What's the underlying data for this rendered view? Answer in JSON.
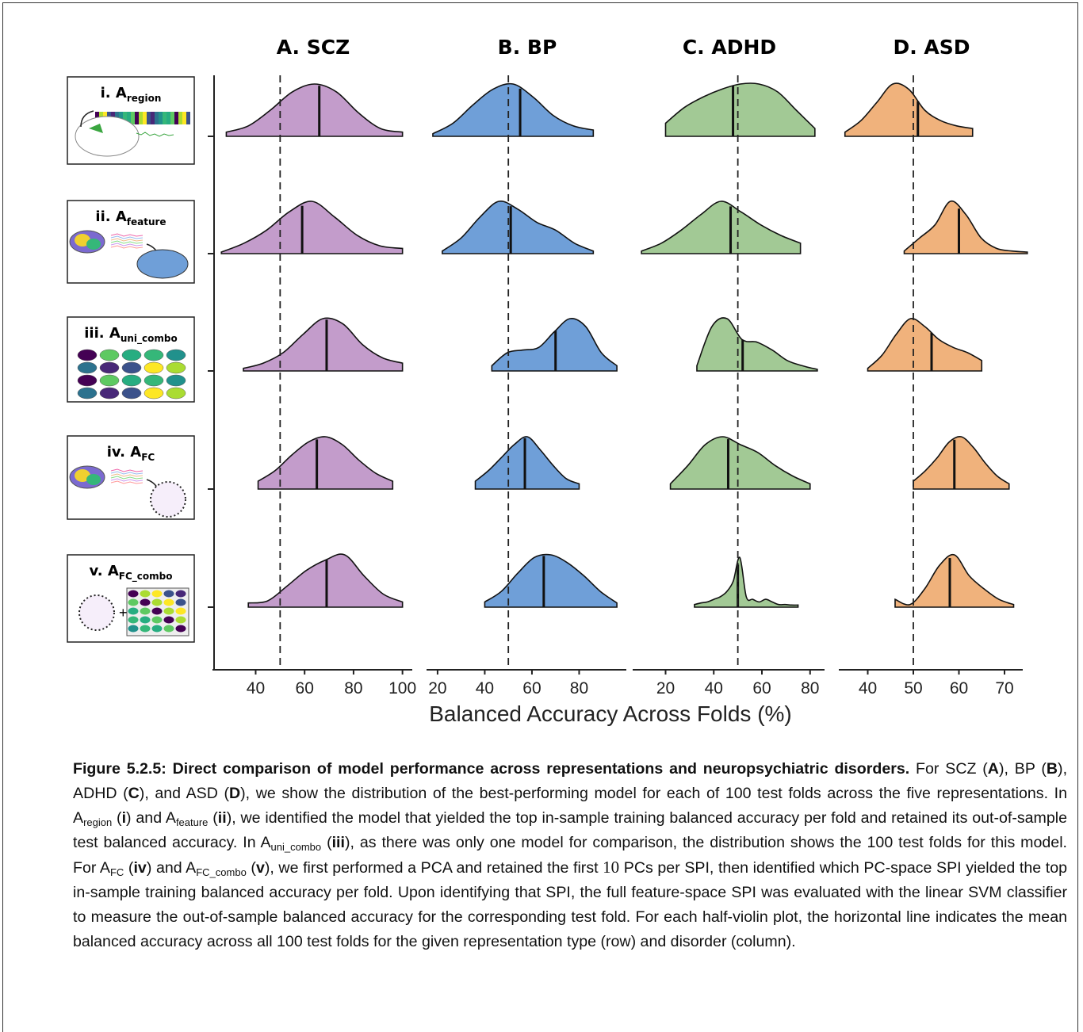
{
  "chart_data": [
    {
      "type": "violin",
      "title": "A. SCZ",
      "color": "#c39ccb",
      "xlim": [
        23,
        104
      ],
      "xticks": [
        40,
        60,
        80,
        100
      ],
      "ref": 50,
      "violins": [
        {
          "xrange": [
            28,
            100
          ],
          "mean": 66,
          "density": [
            0.08,
            0.2,
            0.5,
            0.85,
            1.0,
            0.85,
            0.45,
            0.15,
            0.08
          ]
        },
        {
          "xrange": [
            26,
            100
          ],
          "mean": 59,
          "density": [
            0.03,
            0.2,
            0.45,
            0.8,
            1.0,
            0.7,
            0.35,
            0.15,
            0.1
          ]
        },
        {
          "xrange": [
            35,
            100
          ],
          "mean": 69,
          "density": [
            0.05,
            0.15,
            0.35,
            0.7,
            1.0,
            0.9,
            0.5,
            0.25,
            0.15
          ]
        },
        {
          "xrange": [
            41,
            96
          ],
          "mean": 65,
          "density": [
            0.15,
            0.35,
            0.65,
            0.9,
            1.0,
            0.85,
            0.55,
            0.3,
            0.15
          ]
        },
        {
          "xrange": [
            37,
            100
          ],
          "mean": 69,
          "density": [
            0.08,
            0.12,
            0.4,
            0.7,
            0.9,
            1.0,
            0.6,
            0.25,
            0.1
          ]
        }
      ]
    },
    {
      "type": "violin",
      "title": "B. BP",
      "color": "#6f9fd8",
      "xlim": [
        16,
        100
      ],
      "xticks": [
        20,
        40,
        60,
        80
      ],
      "ref": 50,
      "violins": [
        {
          "xrange": [
            18,
            86
          ],
          "mean": 55,
          "density": [
            0.05,
            0.25,
            0.6,
            0.9,
            1.0,
            0.75,
            0.4,
            0.2,
            0.12
          ]
        },
        {
          "xrange": [
            22,
            86
          ],
          "mean": 51,
          "density": [
            0.05,
            0.3,
            0.7,
            1.0,
            0.85,
            0.6,
            0.45,
            0.2,
            0.05
          ]
        },
        {
          "xrange": [
            43,
            96
          ],
          "mean": 70,
          "density": [
            0.1,
            0.35,
            0.4,
            0.45,
            0.75,
            1.0,
            0.85,
            0.35,
            0.1
          ]
        },
        {
          "xrange": [
            36,
            80
          ],
          "mean": 57,
          "density": [
            0.15,
            0.35,
            0.6,
            0.85,
            1.0,
            0.75,
            0.45,
            0.2,
            0.1
          ]
        },
        {
          "xrange": [
            40,
            96
          ],
          "mean": 65,
          "density": [
            0.1,
            0.3,
            0.65,
            0.95,
            1.0,
            0.85,
            0.6,
            0.3,
            0.08
          ]
        }
      ]
    },
    {
      "type": "violin",
      "title": "C. ADHD",
      "color": "#a2c995",
      "xlim": [
        7,
        86
      ],
      "xticks": [
        20,
        40,
        60,
        80
      ],
      "ref": 50,
      "violins": [
        {
          "xrange": [
            20,
            82
          ],
          "mean": 48,
          "density": [
            0.25,
            0.55,
            0.75,
            0.9,
            1.0,
            1.0,
            0.85,
            0.5,
            0.15
          ]
        },
        {
          "xrange": [
            10,
            76
          ],
          "mean": 47,
          "density": [
            0.05,
            0.2,
            0.45,
            0.75,
            1.0,
            0.8,
            0.55,
            0.35,
            0.2
          ]
        },
        {
          "xrange": [
            33,
            83
          ],
          "mean": 52,
          "density": [
            0.1,
            0.85,
            1.0,
            0.6,
            0.55,
            0.4,
            0.2,
            0.1,
            0.03
          ]
        },
        {
          "xrange": [
            22,
            80
          ],
          "mean": 46,
          "density": [
            0.1,
            0.45,
            0.85,
            1.0,
            0.85,
            0.7,
            0.45,
            0.25,
            0.1
          ]
        },
        {
          "xrange": [
            32,
            75
          ],
          "mean": 50,
          "density": [
            0.05,
            0.08,
            0.1,
            0.15,
            0.2,
            0.3,
            0.5,
            0.95,
            0.2,
            0.15,
            0.1,
            0.15,
            0.1,
            0.05,
            0.05,
            0.04,
            0.04
          ]
        }
      ]
    },
    {
      "type": "violin",
      "title": "D. ASD",
      "color": "#f0b27c",
      "xlim": [
        34,
        74
      ],
      "xticks": [
        40,
        50,
        60,
        70
      ],
      "ref": 50,
      "violins": [
        {
          "xrange": [
            35,
            63
          ],
          "mean": 51,
          "density": [
            0.08,
            0.3,
            0.65,
            1.0,
            0.9,
            0.5,
            0.3,
            0.2,
            0.15
          ]
        },
        {
          "xrange": [
            48,
            75
          ],
          "mean": 60,
          "density": [
            0.05,
            0.3,
            0.55,
            1.0,
            0.75,
            0.3,
            0.1,
            0.05,
            0.03
          ]
        },
        {
          "xrange": [
            40,
            65
          ],
          "mean": 54,
          "density": [
            0.05,
            0.3,
            0.7,
            1.0,
            0.85,
            0.6,
            0.45,
            0.35,
            0.2
          ]
        },
        {
          "xrange": [
            50,
            71
          ],
          "mean": 59,
          "density": [
            0.15,
            0.35,
            0.6,
            0.9,
            1.0,
            0.8,
            0.5,
            0.25,
            0.1
          ]
        },
        {
          "xrange": [
            46,
            72
          ],
          "mean": 58,
          "density": [
            0.15,
            0.05,
            0.35,
            0.8,
            1.0,
            0.6,
            0.35,
            0.15,
            0.05
          ]
        }
      ]
    }
  ],
  "figure": {
    "xlabel": "Balanced Accuracy Across Folds (%)",
    "rows": [
      {
        "label": "i. A",
        "sub": "region"
      },
      {
        "label": "ii. A",
        "sub": "feature"
      },
      {
        "label": "iii. A",
        "sub": "uni_combo"
      },
      {
        "label": "iv. A",
        "sub": "FC"
      },
      {
        "label": "v. A",
        "sub": "FC_combo"
      }
    ]
  },
  "caption": {
    "runs": [
      {
        "text": "Figure 5.2.5: Direct comparison of model performance across representations and neuropsychiatric disorders.",
        "style": "bold"
      },
      {
        "text": " For SCZ ("
      },
      {
        "text": "A",
        "style": "bold"
      },
      {
        "text": "), BP ("
      },
      {
        "text": "B",
        "style": "bold"
      },
      {
        "text": "), ADHD ("
      },
      {
        "text": "C",
        "style": "bold"
      },
      {
        "text": "), and ASD ("
      },
      {
        "text": "D",
        "style": "bold"
      },
      {
        "text": "), we show the distribution of the best-performing model for each of 100 test folds across the five representations. In A"
      },
      {
        "text": "region",
        "style": "sub"
      },
      {
        "text": " ("
      },
      {
        "text": "i",
        "style": "bold"
      },
      {
        "text": ") and A"
      },
      {
        "text": "feature",
        "style": "sub"
      },
      {
        "text": " ("
      },
      {
        "text": "ii",
        "style": "bold"
      },
      {
        "text": "), we identified the model that yielded the top in-sample training balanced accuracy per fold and retained its out-of-sample test balanced accuracy. In A"
      },
      {
        "text": "uni_combo",
        "style": "sub"
      },
      {
        "text": " ("
      },
      {
        "text": "iii",
        "style": "bold"
      },
      {
        "text": "), as there was only one model for comparison, the distribution shows the 100 test folds for this model. For A"
      },
      {
        "text": "FC",
        "style": "sub"
      },
      {
        "text": " ("
      },
      {
        "text": "iv",
        "style": "bold"
      },
      {
        "text": ") and A"
      },
      {
        "text": "FC_combo",
        "style": "sub"
      },
      {
        "text": " ("
      },
      {
        "text": "v",
        "style": "bold"
      },
      {
        "text": "), we first performed a PCA and retained the first "
      },
      {
        "text": "10",
        "style": "math"
      },
      {
        "text": " PCs per SPI, then identified which PC-space SPI yielded the top in-sample training balanced accuracy per fold. Upon identifying that SPI, the full feature-space SPI was evaluated with the linear SVM classifier to measure the out-of-sample balanced accuracy for the corresponding test fold. For each half-violin plot, the horizontal line indicates the mean balanced accuracy across all 100 test folds for the given representation type (row) and disorder (column)."
      }
    ]
  }
}
